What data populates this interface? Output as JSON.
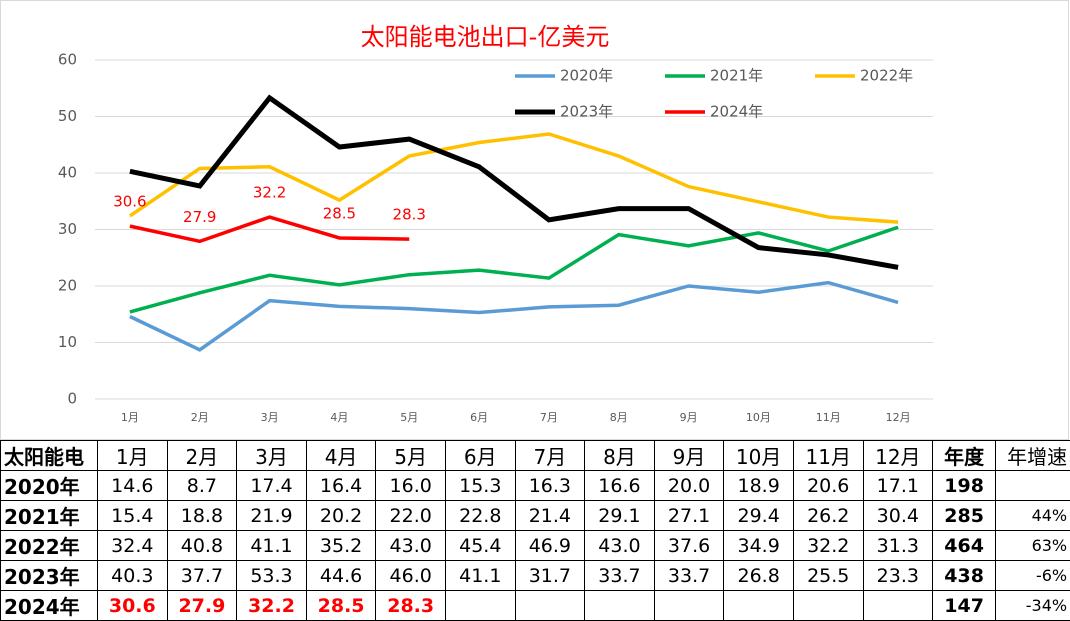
{
  "chart_data": {
    "type": "line",
    "title": "太阳能电池出口-亿美元",
    "categories": [
      "1月",
      "2月",
      "3月",
      "4月",
      "5月",
      "6月",
      "7月",
      "8月",
      "9月",
      "10月",
      "11月",
      "12月"
    ],
    "ylim": [
      0,
      60
    ],
    "yticks": [
      0,
      10,
      20,
      30,
      40,
      50,
      60
    ],
    "grid": true,
    "series": [
      {
        "name": "2020年",
        "color": "#5b9bd5",
        "values": [
          14.6,
          8.7,
          17.4,
          16.4,
          16.0,
          15.3,
          16.3,
          16.6,
          20.0,
          18.9,
          20.6,
          17.1
        ]
      },
      {
        "name": "2021年",
        "color": "#00b050",
        "values": [
          15.4,
          18.8,
          21.9,
          20.2,
          22.0,
          22.8,
          21.4,
          29.1,
          27.1,
          29.4,
          26.2,
          30.4
        ]
      },
      {
        "name": "2022年",
        "color": "#ffc000",
        "values": [
          32.4,
          40.8,
          41.1,
          35.2,
          43.0,
          45.4,
          46.9,
          43.0,
          37.6,
          34.9,
          32.2,
          31.3
        ]
      },
      {
        "name": "2023年",
        "color": "#000000",
        "values": [
          40.3,
          37.7,
          53.3,
          44.6,
          46.0,
          41.1,
          31.7,
          33.7,
          33.7,
          26.8,
          25.5,
          23.3
        ]
      },
      {
        "name": "2024年",
        "color": "#ff0000",
        "values": [
          30.6,
          27.9,
          32.2,
          28.5,
          28.3,
          null,
          null,
          null,
          null,
          null,
          null,
          null
        ],
        "data_labels": true
      }
    ]
  },
  "table": {
    "header": [
      "太阳能电",
      "1月",
      "2月",
      "3月",
      "4月",
      "5月",
      "6月",
      "7月",
      "8月",
      "9月",
      "10月",
      "11月",
      "12月",
      "年度",
      "年增速"
    ],
    "rows": [
      [
        "2020年",
        "14.6",
        "8.7",
        "17.4",
        "16.4",
        "16.0",
        "15.3",
        "16.3",
        "16.6",
        "20.0",
        "18.9",
        "20.6",
        "17.1",
        "198",
        null
      ],
      [
        "2021年",
        "15.4",
        "18.8",
        "21.9",
        "20.2",
        "22.0",
        "22.8",
        "21.4",
        "29.1",
        "27.1",
        "29.4",
        "26.2",
        "30.4",
        "285",
        "44%"
      ],
      [
        "2022年",
        "32.4",
        "40.8",
        "41.1",
        "35.2",
        "43.0",
        "45.4",
        "46.9",
        "43.0",
        "37.6",
        "34.9",
        "32.2",
        "31.3",
        "464",
        "63%"
      ],
      [
        "2023年",
        "40.3",
        "37.7",
        "53.3",
        "44.6",
        "46.0",
        "41.1",
        "31.7",
        "33.7",
        "33.7",
        "26.8",
        "25.5",
        "23.3",
        "438",
        "-6%"
      ],
      [
        "2024年",
        "30.6",
        "27.9",
        "32.2",
        "28.5",
        "28.3",
        null,
        null,
        null,
        null,
        null,
        null,
        null,
        "147",
        "-34%"
      ]
    ]
  }
}
